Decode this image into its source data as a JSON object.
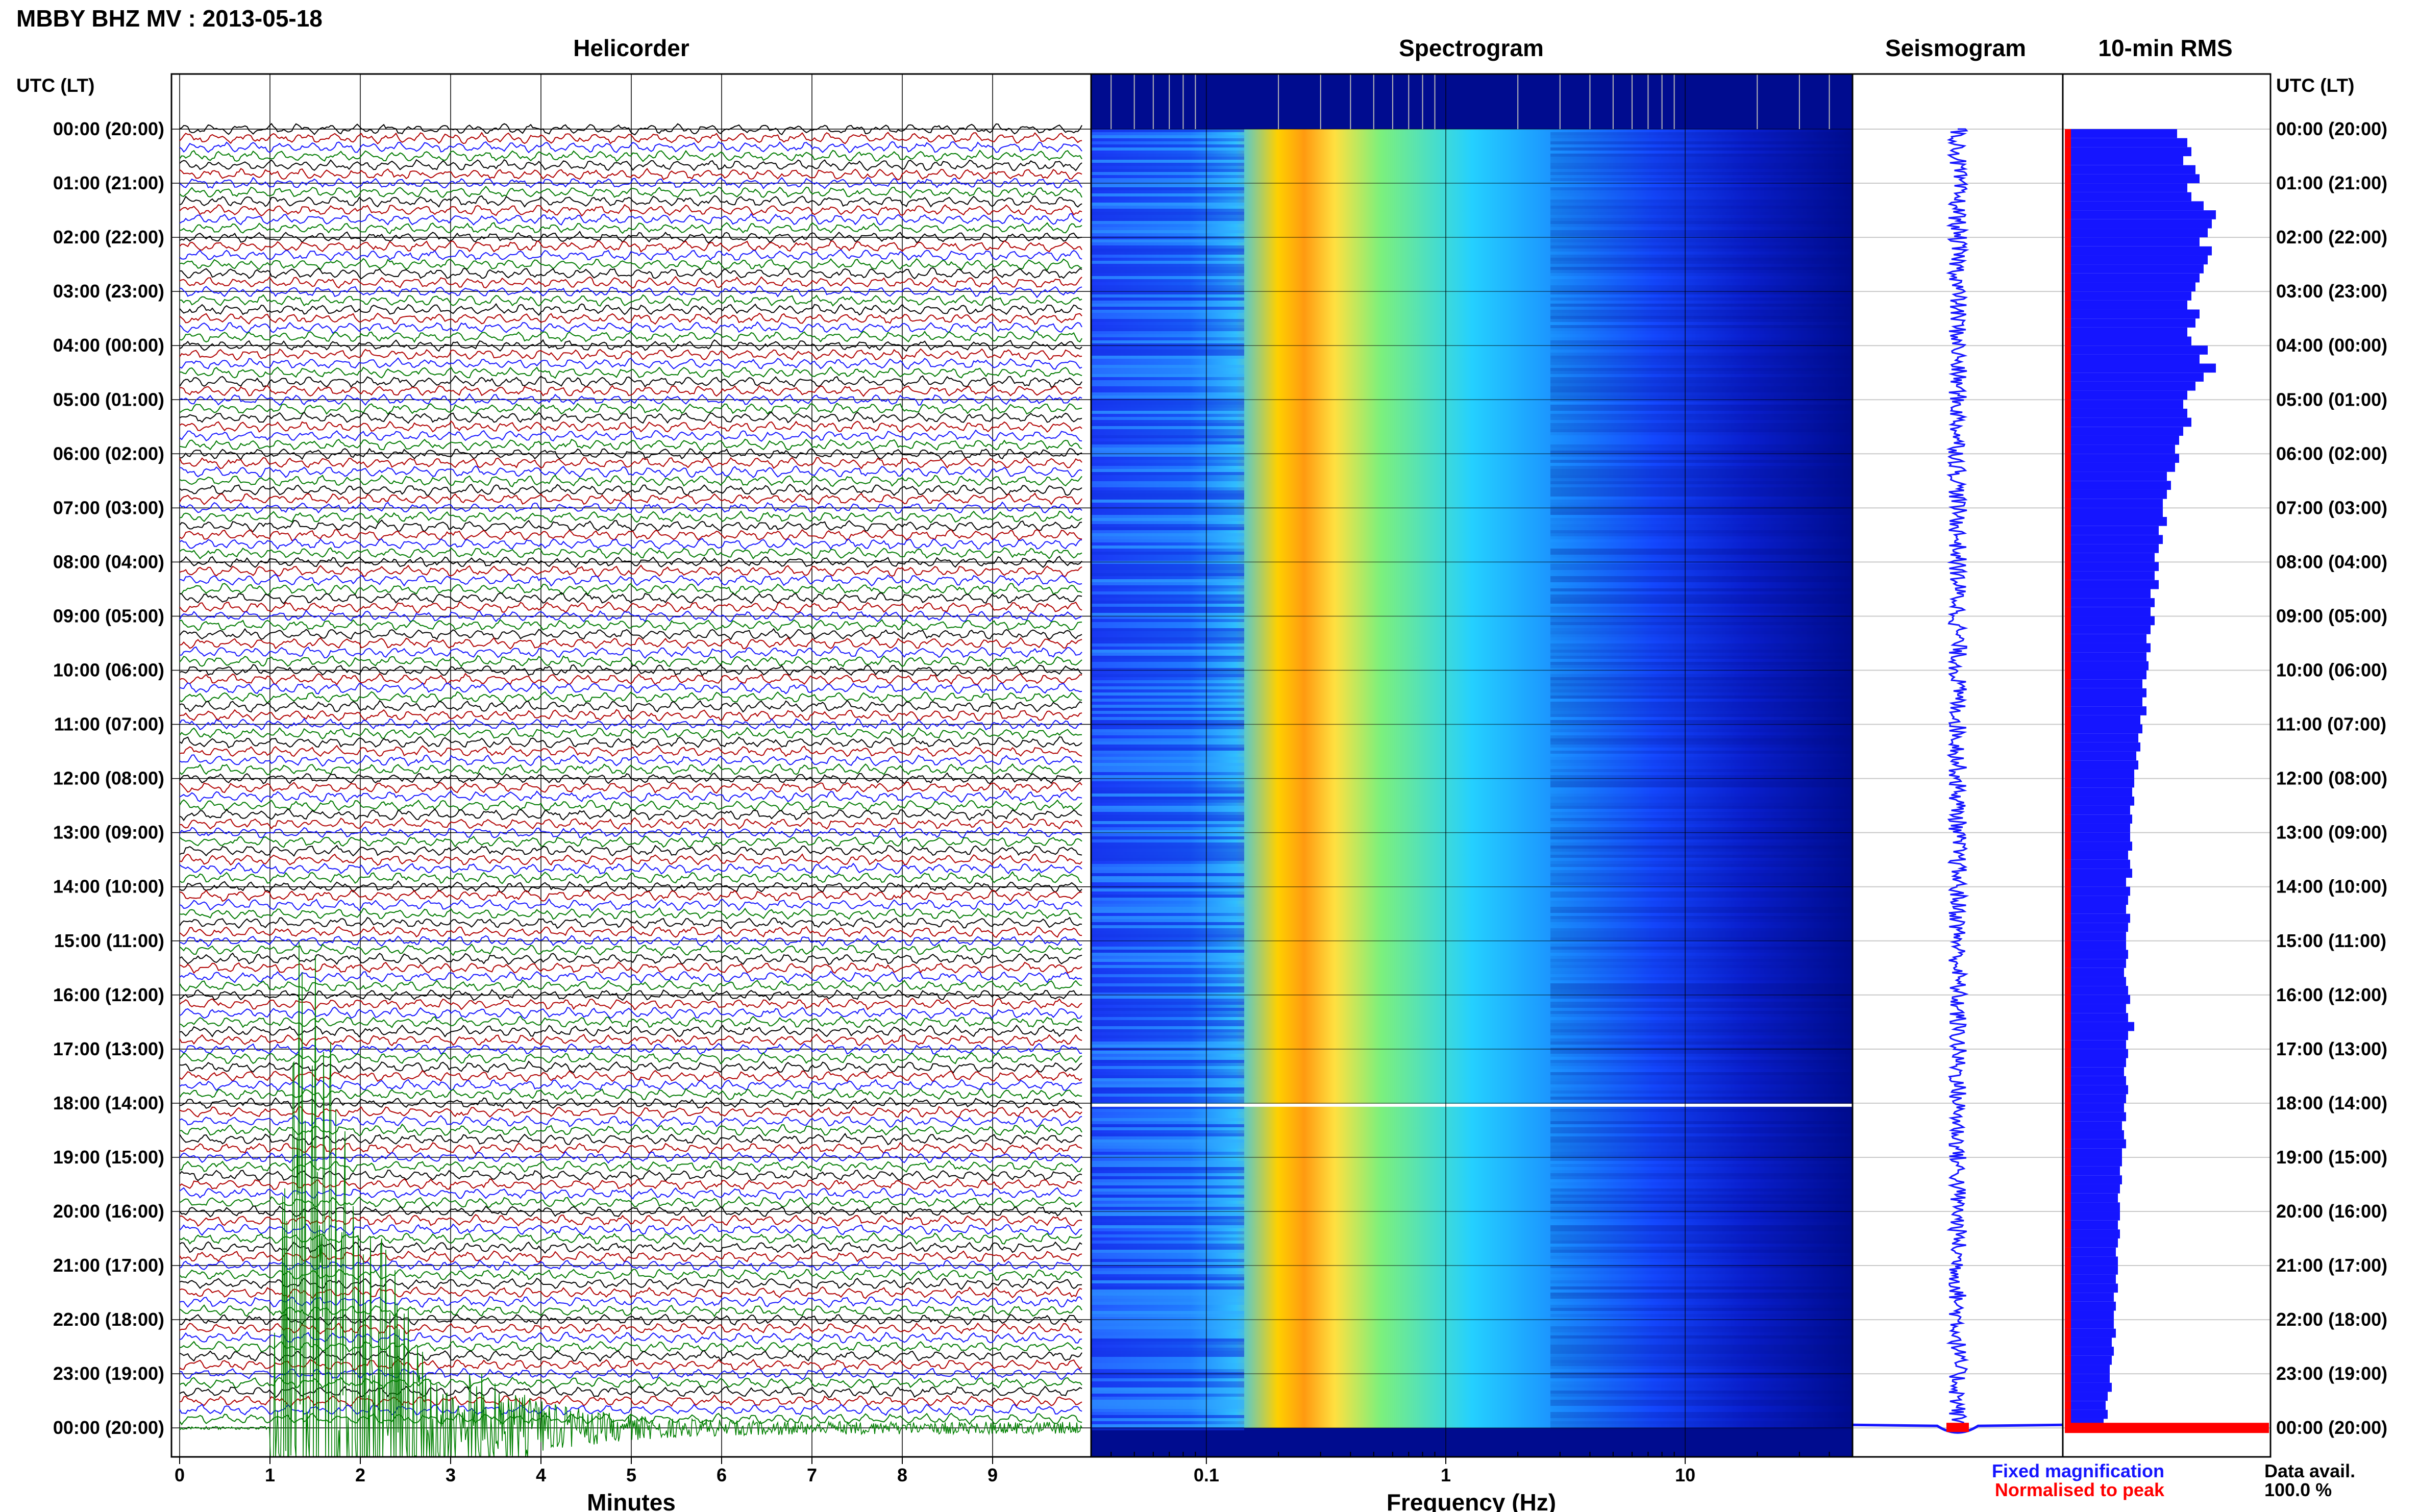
{
  "header": {
    "title": "MBBY BHZ MV : 2013-05-18"
  },
  "colors": {
    "trace_cycle": [
      "#000000",
      "#b00000",
      "#1515ff",
      "#007a00"
    ],
    "event": "#008000",
    "fixed": "#1515ff",
    "normalised": "#ff0000",
    "spectrogram_colormap": "jet"
  },
  "time_axis": {
    "label": "UTC (LT)",
    "ticks": [
      "00:00 (20:00)",
      "01:00 (21:00)",
      "02:00 (22:00)",
      "03:00 (23:00)",
      "04:00 (00:00)",
      "05:00 (01:00)",
      "06:00 (02:00)",
      "07:00 (03:00)",
      "08:00 (04:00)",
      "09:00 (05:00)",
      "10:00 (06:00)",
      "11:00 (07:00)",
      "12:00 (08:00)",
      "13:00 (09:00)",
      "14:00 (10:00)",
      "15:00 (11:00)",
      "16:00 (12:00)",
      "17:00 (13:00)",
      "18:00 (14:00)",
      "19:00 (15:00)",
      "20:00 (16:00)",
      "21:00 (17:00)",
      "22:00 (18:00)",
      "23:00 (19:00)",
      "00:00 (20:00)"
    ]
  },
  "legend": {
    "fixed": "Fixed magnification",
    "normalised": "Normalised to peak",
    "data_avail_label": "Data avail.",
    "data_avail_value": "100.0 %"
  },
  "chart_data": [
    {
      "type": "line",
      "title": "Helicorder",
      "xlabel": "Minutes",
      "ylabel": "UTC (LT)",
      "x_ticks": [
        "0",
        "1",
        "2",
        "3",
        "4",
        "5",
        "6",
        "7",
        "8",
        "9"
      ],
      "xlim": [
        0,
        10
      ],
      "traces_per_hour": 6,
      "trace_minutes": 10,
      "grid": true,
      "event": {
        "trace_start": "23:50",
        "onset_minute": 1.0,
        "peak_minute": 1.25,
        "note": "large signal with long coda"
      }
    },
    {
      "type": "heatmap",
      "title": "Spectrogram",
      "xlabel": "Frequency (Hz)",
      "x_scale": "log",
      "x_ticks": [
        "0.1",
        "1",
        "10"
      ],
      "xlim": [
        0.033,
        50
      ],
      "ylim": [
        "00:00",
        "24:00"
      ],
      "peak_band_hz": [
        0.2,
        0.3
      ],
      "data_gap_utc": "18:00",
      "grid": true
    },
    {
      "type": "line",
      "title": "Seismogram",
      "ylim": [
        "00:00",
        "24:00"
      ]
    },
    {
      "type": "bar",
      "title": "10-min RMS",
      "orientation": "horizontal",
      "categories_per_hour": 6,
      "values_relative": [
        0.55,
        0.6,
        0.62,
        0.58,
        0.64,
        0.66,
        0.6,
        0.62,
        0.68,
        0.74,
        0.72,
        0.7,
        0.66,
        0.72,
        0.7,
        0.68,
        0.66,
        0.64,
        0.62,
        0.6,
        0.66,
        0.64,
        0.6,
        0.62,
        0.7,
        0.66,
        0.74,
        0.68,
        0.64,
        0.6,
        0.58,
        0.6,
        0.62,
        0.58,
        0.56,
        0.54,
        0.56,
        0.54,
        0.5,
        0.52,
        0.5,
        0.48,
        0.48,
        0.5,
        0.46,
        0.48,
        0.46,
        0.44,
        0.46,
        0.44,
        0.46,
        0.42,
        0.44,
        0.42,
        0.44,
        0.42,
        0.4,
        0.42,
        0.4,
        0.41,
        0.4,
        0.38,
        0.4,
        0.38,
        0.4,
        0.37,
        0.38,
        0.36,
        0.37,
        0.35,
        0.36,
        0.34,
        0.34,
        0.33,
        0.34,
        0.32,
        0.33,
        0.32,
        0.32,
        0.33,
        0.31,
        0.32,
        0.33,
        0.3,
        0.32,
        0.31,
        0.3,
        0.32,
        0.31,
        0.3,
        0.3,
        0.31,
        0.3,
        0.29,
        0.3,
        0.31,
        0.32,
        0.3,
        0.31,
        0.34,
        0.31,
        0.3,
        0.31,
        0.3,
        0.29,
        0.3,
        0.31,
        0.3,
        0.29,
        0.3,
        0.28,
        0.29,
        0.3,
        0.28,
        0.28,
        0.27,
        0.28,
        0.27,
        0.26,
        0.27,
        0.27,
        0.26,
        0.27,
        0.26,
        0.25,
        0.26,
        0.26,
        0.25,
        0.26,
        0.24,
        0.25,
        0.24,
        0.24,
        0.25,
        0.23,
        0.24,
        0.23,
        0.22,
        0.22,
        0.23,
        0.21,
        0.2,
        0.21,
        0.19
      ],
      "final_bar_relative": 1.0
    }
  ]
}
